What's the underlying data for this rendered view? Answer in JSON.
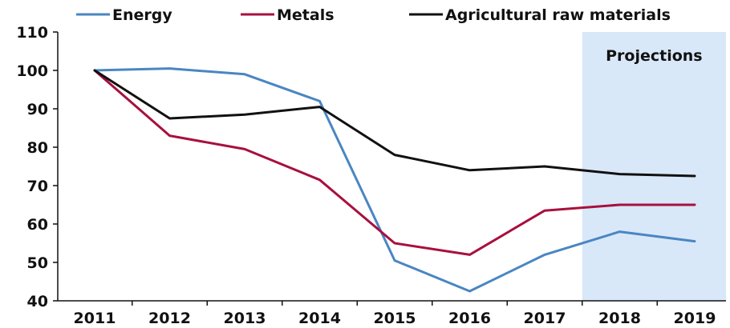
{
  "chart_data": {
    "type": "line",
    "title": "",
    "xlabel": "",
    "ylabel": "",
    "categories": [
      "2011",
      "2012",
      "2013",
      "2014",
      "2015",
      "2016",
      "2017",
      "2018",
      "2019"
    ],
    "ylim": [
      40,
      110
    ],
    "yticks": [
      40,
      50,
      60,
      70,
      80,
      90,
      100,
      110
    ],
    "grid": false,
    "legend_position": "top",
    "series": [
      {
        "name": "Energy",
        "color": "#4a86c2",
        "values": [
          100,
          100.5,
          99,
          92,
          50.5,
          42.5,
          52,
          58,
          55.5
        ]
      },
      {
        "name": "Metals",
        "color": "#a8103e",
        "values": [
          100,
          83,
          79.5,
          71.5,
          55,
          52,
          63.5,
          65,
          65
        ]
      },
      {
        "name": "Agricultural raw materials",
        "color": "#111111",
        "values": [
          100,
          87.5,
          88.5,
          90.5,
          78,
          74,
          75,
          73,
          72.5
        ]
      }
    ],
    "shaded_region": {
      "label": "Projections",
      "from_category": "2017",
      "to_category": "2019",
      "color": "#d9e8f8"
    }
  }
}
